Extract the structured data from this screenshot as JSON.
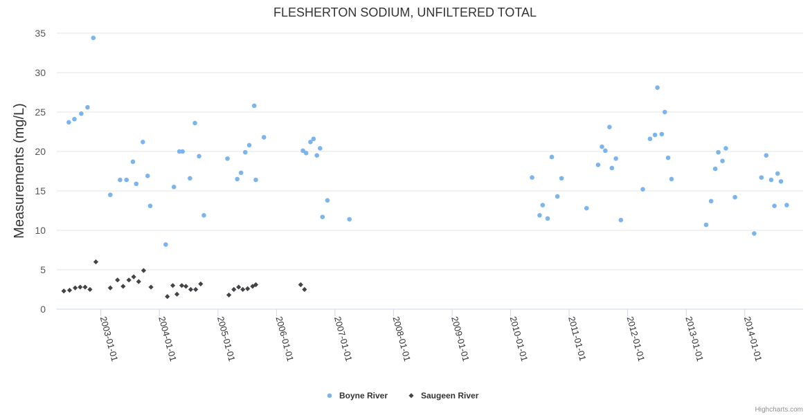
{
  "chart_data": {
    "type": "scatter",
    "title": "FLESHERTON SODIUM, UNFILTERED TOTAL",
    "ylabel": "Measurements (mg/L)",
    "xlabel": "",
    "ylim": [
      0,
      35
    ],
    "yticks": [
      0,
      5,
      10,
      15,
      20,
      25,
      30,
      35
    ],
    "xlim": [
      "2002-04-01",
      "2014-12-31"
    ],
    "xticks": [
      "2003-01-01",
      "2004-01-01",
      "2005-01-01",
      "2006-01-01",
      "2007-01-01",
      "2008-01-01",
      "2009-01-01",
      "2010-01-01",
      "2011-01-01",
      "2012-01-01",
      "2013-01-01",
      "2014-01-01"
    ],
    "grid": true,
    "legend_position": "bottom-center",
    "series": [
      {
        "name": "Boyne River",
        "marker": "circle",
        "color": "#7cb5ec",
        "points": [
          {
            "x": "2002-06-15",
            "y": 23.7
          },
          {
            "x": "2002-07-20",
            "y": 24.1
          },
          {
            "x": "2002-09-01",
            "y": 24.8
          },
          {
            "x": "2002-10-10",
            "y": 25.6
          },
          {
            "x": "2002-11-15",
            "y": 34.4
          },
          {
            "x": "2003-03-01",
            "y": 14.5
          },
          {
            "x": "2003-05-01",
            "y": 16.4
          },
          {
            "x": "2003-06-10",
            "y": 16.4
          },
          {
            "x": "2003-07-20",
            "y": 18.7
          },
          {
            "x": "2003-08-10",
            "y": 15.9
          },
          {
            "x": "2003-09-20",
            "y": 21.2
          },
          {
            "x": "2003-10-20",
            "y": 16.9
          },
          {
            "x": "2003-11-05",
            "y": 13.1
          },
          {
            "x": "2004-02-10",
            "y": 8.2
          },
          {
            "x": "2004-04-01",
            "y": 15.5
          },
          {
            "x": "2004-05-05",
            "y": 20.0
          },
          {
            "x": "2004-05-25",
            "y": 20.0
          },
          {
            "x": "2004-07-10",
            "y": 16.6
          },
          {
            "x": "2004-08-10",
            "y": 23.6
          },
          {
            "x": "2004-09-05",
            "y": 19.4
          },
          {
            "x": "2004-10-05",
            "y": 11.9
          },
          {
            "x": "2005-03-01",
            "y": 19.1
          },
          {
            "x": "2005-05-01",
            "y": 16.5
          },
          {
            "x": "2005-05-25",
            "y": 17.3
          },
          {
            "x": "2005-06-20",
            "y": 19.9
          },
          {
            "x": "2005-07-15",
            "y": 20.8
          },
          {
            "x": "2005-08-15",
            "y": 25.8
          },
          {
            "x": "2005-08-25",
            "y": 16.4
          },
          {
            "x": "2005-10-15",
            "y": 21.8
          },
          {
            "x": "2006-06-15",
            "y": 20.1
          },
          {
            "x": "2006-07-05",
            "y": 19.8
          },
          {
            "x": "2006-08-01",
            "y": 21.2
          },
          {
            "x": "2006-08-20",
            "y": 21.6
          },
          {
            "x": "2006-09-10",
            "y": 19.5
          },
          {
            "x": "2006-09-30",
            "y": 20.4
          },
          {
            "x": "2006-10-15",
            "y": 11.7
          },
          {
            "x": "2006-11-15",
            "y": 13.8
          },
          {
            "x": "2007-04-01",
            "y": 11.4
          },
          {
            "x": "2010-05-15",
            "y": 16.7
          },
          {
            "x": "2010-07-01",
            "y": 11.9
          },
          {
            "x": "2010-07-20",
            "y": 13.2
          },
          {
            "x": "2010-08-20",
            "y": 11.5
          },
          {
            "x": "2010-09-15",
            "y": 19.3
          },
          {
            "x": "2010-10-20",
            "y": 14.3
          },
          {
            "x": "2010-11-15",
            "y": 16.6
          },
          {
            "x": "2011-04-20",
            "y": 12.8
          },
          {
            "x": "2011-07-01",
            "y": 18.3
          },
          {
            "x": "2011-07-25",
            "y": 20.6
          },
          {
            "x": "2011-08-15",
            "y": 20.1
          },
          {
            "x": "2011-09-10",
            "y": 23.1
          },
          {
            "x": "2011-09-25",
            "y": 17.9
          },
          {
            "x": "2011-10-20",
            "y": 19.1
          },
          {
            "x": "2011-11-20",
            "y": 11.3
          },
          {
            "x": "2012-04-05",
            "y": 15.2
          },
          {
            "x": "2012-05-20",
            "y": 21.6
          },
          {
            "x": "2012-06-20",
            "y": 22.1
          },
          {
            "x": "2012-07-05",
            "y": 28.1
          },
          {
            "x": "2012-08-01",
            "y": 22.2
          },
          {
            "x": "2012-08-20",
            "y": 25.0
          },
          {
            "x": "2012-09-10",
            "y": 19.2
          },
          {
            "x": "2012-10-01",
            "y": 16.5
          },
          {
            "x": "2013-05-05",
            "y": 10.7
          },
          {
            "x": "2013-06-05",
            "y": 13.7
          },
          {
            "x": "2013-07-01",
            "y": 17.8
          },
          {
            "x": "2013-07-20",
            "y": 19.9
          },
          {
            "x": "2013-08-15",
            "y": 18.8
          },
          {
            "x": "2013-09-05",
            "y": 20.4
          },
          {
            "x": "2013-11-01",
            "y": 14.2
          },
          {
            "x": "2014-03-01",
            "y": 9.6
          },
          {
            "x": "2014-04-15",
            "y": 16.7
          },
          {
            "x": "2014-05-15",
            "y": 19.5
          },
          {
            "x": "2014-06-15",
            "y": 16.4
          },
          {
            "x": "2014-07-05",
            "y": 13.1
          },
          {
            "x": "2014-07-25",
            "y": 17.2
          },
          {
            "x": "2014-08-15",
            "y": 16.2
          },
          {
            "x": "2014-09-20",
            "y": 13.2
          }
        ]
      },
      {
        "name": "Saugeen River",
        "marker": "diamond",
        "color": "#434348",
        "points": [
          {
            "x": "2002-05-15",
            "y": 2.3
          },
          {
            "x": "2002-06-20",
            "y": 2.4
          },
          {
            "x": "2002-07-25",
            "y": 2.7
          },
          {
            "x": "2002-08-25",
            "y": 2.8
          },
          {
            "x": "2002-09-25",
            "y": 2.8
          },
          {
            "x": "2002-10-25",
            "y": 2.5
          },
          {
            "x": "2002-12-01",
            "y": 6.0
          },
          {
            "x": "2003-03-01",
            "y": 2.7
          },
          {
            "x": "2003-04-15",
            "y": 3.7
          },
          {
            "x": "2003-05-20",
            "y": 2.9
          },
          {
            "x": "2003-06-25",
            "y": 3.7
          },
          {
            "x": "2003-07-25",
            "y": 4.1
          },
          {
            "x": "2003-08-25",
            "y": 3.5
          },
          {
            "x": "2003-09-25",
            "y": 4.9
          },
          {
            "x": "2003-11-10",
            "y": 2.8
          },
          {
            "x": "2004-02-20",
            "y": 1.6
          },
          {
            "x": "2004-03-25",
            "y": 3.0
          },
          {
            "x": "2004-04-20",
            "y": 1.9
          },
          {
            "x": "2004-05-20",
            "y": 3.0
          },
          {
            "x": "2004-06-15",
            "y": 2.9
          },
          {
            "x": "2004-07-15",
            "y": 2.5
          },
          {
            "x": "2004-08-15",
            "y": 2.5
          },
          {
            "x": "2004-09-15",
            "y": 3.2
          },
          {
            "x": "2005-03-10",
            "y": 1.8
          },
          {
            "x": "2005-04-10",
            "y": 2.5
          },
          {
            "x": "2005-05-10",
            "y": 2.8
          },
          {
            "x": "2005-06-05",
            "y": 2.5
          },
          {
            "x": "2005-07-05",
            "y": 2.6
          },
          {
            "x": "2005-08-05",
            "y": 2.9
          },
          {
            "x": "2005-08-25",
            "y": 3.1
          },
          {
            "x": "2006-06-01",
            "y": 3.1
          },
          {
            "x": "2006-06-25",
            "y": 2.5
          }
        ]
      }
    ],
    "credits": "Highcharts.com"
  }
}
